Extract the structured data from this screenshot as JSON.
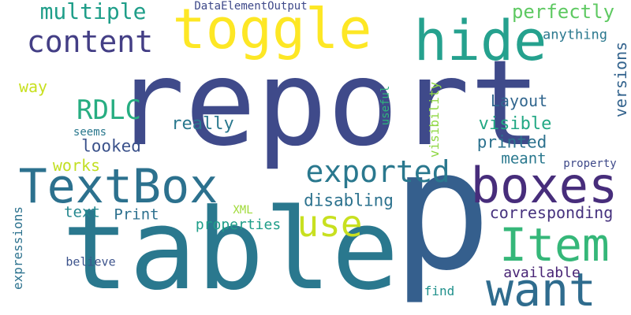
{
  "words": [
    {
      "id": "report",
      "text": "report",
      "color": "#3f4a8a"
    },
    {
      "id": "table",
      "text": "table",
      "color": "#2a788e"
    },
    {
      "id": "p",
      "text": "p",
      "color": "#355f8d"
    },
    {
      "id": "toggle",
      "text": "toggle",
      "color": "#fde725"
    },
    {
      "id": "hide",
      "text": "hide",
      "color": "#25a18e"
    },
    {
      "id": "textbox",
      "text": "TextBox",
      "color": "#2c718e"
    },
    {
      "id": "boxes",
      "text": "boxes",
      "color": "#472d7b"
    },
    {
      "id": "item",
      "text": "Item",
      "color": "#35b779"
    },
    {
      "id": "want",
      "text": "want",
      "color": "#2f6c8e"
    },
    {
      "id": "exported",
      "text": "exported",
      "color": "#2a788e"
    },
    {
      "id": "use",
      "text": "use",
      "color": "#c8e020"
    },
    {
      "id": "content",
      "text": "content",
      "color": "#433e85"
    },
    {
      "id": "multiple",
      "text": "multiple",
      "color": "#1f9e89"
    },
    {
      "id": "perfectly",
      "text": "perfectly",
      "color": "#5ec962"
    },
    {
      "id": "anything",
      "text": "anything",
      "color": "#2a788e"
    },
    {
      "id": "versions",
      "text": "versions",
      "color": "#33638d"
    },
    {
      "id": "rdlc",
      "text": "RDLC",
      "color": "#27ad81"
    },
    {
      "id": "layout",
      "text": "Layout",
      "color": "#31668e"
    },
    {
      "id": "really",
      "text": "really",
      "color": "#2a788e"
    },
    {
      "id": "visible",
      "text": "visible",
      "color": "#22a884"
    },
    {
      "id": "printed",
      "text": "printed",
      "color": "#2c718e"
    },
    {
      "id": "meant",
      "text": "meant",
      "color": "#2a788e"
    },
    {
      "id": "looked",
      "text": "looked",
      "color": "#3b528b"
    },
    {
      "id": "works",
      "text": "works",
      "color": "#c2df23"
    },
    {
      "id": "way",
      "text": "way",
      "color": "#c8e020"
    },
    {
      "id": "seems",
      "text": "seems",
      "color": "#2a788e"
    },
    {
      "id": "useful",
      "text": "useful",
      "color": "#2fb47c"
    },
    {
      "id": "visibility",
      "text": "visibility",
      "color": "#8fd744"
    },
    {
      "id": "dataelementoutput",
      "text": "DataElementOutput",
      "color": "#3e4989"
    },
    {
      "id": "disabling",
      "text": "disabling",
      "color": "#2c728e"
    },
    {
      "id": "corresponding",
      "text": "corresponding",
      "color": "#46327e"
    },
    {
      "id": "text",
      "text": "text",
      "color": "#24878e"
    },
    {
      "id": "print",
      "text": "Print",
      "color": "#2d708e"
    },
    {
      "id": "xml",
      "text": "XML",
      "color": "#a0da39"
    },
    {
      "id": "properties",
      "text": "properties",
      "color": "#1f9e89"
    },
    {
      "id": "property",
      "text": "property",
      "color": "#3e4989"
    },
    {
      "id": "expressions",
      "text": "expressions",
      "color": "#2c728e"
    },
    {
      "id": "believe",
      "text": "believe",
      "color": "#3b528b"
    },
    {
      "id": "available",
      "text": "available",
      "color": "#482475"
    },
    {
      "id": "find",
      "text": "find",
      "color": "#21918c"
    }
  ]
}
